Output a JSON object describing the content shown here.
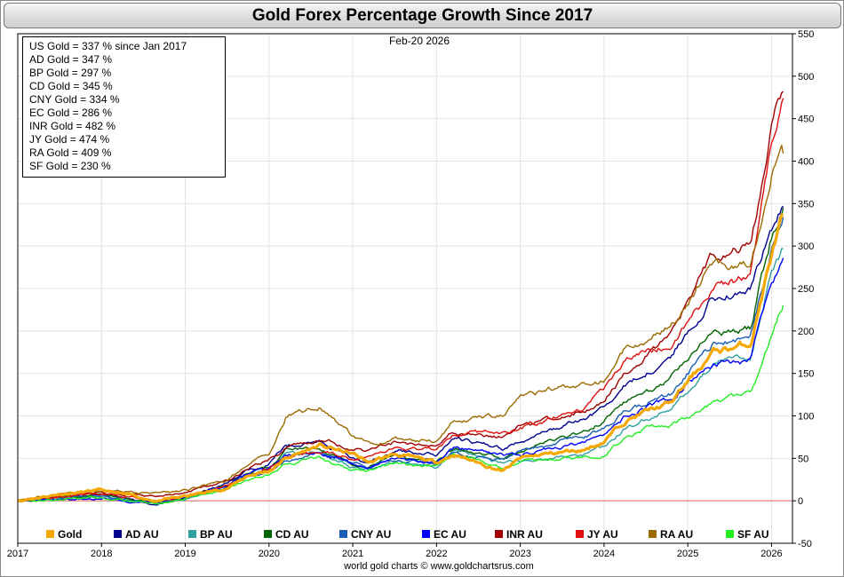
{
  "title": "Gold Forex Percentage Growth Since 2017",
  "date_label": "Feb-20  2026",
  "footer": "world gold charts © www.goldchartsrus.com",
  "summary": [
    "US Gold = 337 % since Jan 2017",
    "AD Gold = 347 %",
    "BP Gold = 297 %",
    "CD Gold = 345 %",
    "CNY Gold = 334 %",
    "EC Gold = 286 %",
    "INR Gold = 482 %",
    "JY Gold = 474 %",
    "RA Gold = 409 %",
    "SF Gold = 230 %"
  ],
  "chart_data": {
    "type": "line",
    "title": "Gold Forex Percentage Growth Since 2017",
    "xlabel": "",
    "ylabel": "",
    "xlim": [
      2017,
      2026.25
    ],
    "ylim": [
      -50,
      550
    ],
    "y_ticks": [
      550,
      500,
      450,
      400,
      350,
      300,
      250,
      200,
      150,
      100,
      50,
      0,
      -50
    ],
    "x_tick_labels": [
      "2017",
      "2018",
      "2019",
      "2020",
      "2021",
      "2022",
      "2023",
      "2024",
      "2025",
      "2026"
    ],
    "x_ticks": [
      2017,
      2018,
      2019,
      2020,
      2021,
      2022,
      2023,
      2024,
      2025,
      2026
    ],
    "zero_line": 0,
    "grid": true,
    "legend_position": "bottom",
    "colors": {
      "zero_line": "#e06060",
      "grid": "#e4e4e4"
    },
    "series": [
      {
        "name": "Gold",
        "color": "#f5a800",
        "width": 3.2,
        "x": [
          2017,
          2017.5,
          2018,
          2018.67,
          2019,
          2019.5,
          2019.75,
          2020,
          2020.2,
          2020.6,
          2021,
          2021.2,
          2021.5,
          2022,
          2022.2,
          2022.8,
          2023,
          2023.3,
          2023.75,
          2024,
          2024.25,
          2024.5,
          2024.8,
          2025,
          2025.3,
          2025.75,
          2026,
          2026.14
        ],
        "y": [
          0,
          8,
          12,
          0,
          5,
          15,
          30,
          35,
          50,
          65,
          55,
          45,
          55,
          45,
          55,
          35,
          50,
          55,
          60,
          70,
          95,
          105,
          115,
          140,
          175,
          185,
          290,
          337
        ]
      },
      {
        "name": "AD AU",
        "color": "#000090",
        "width": 1.4,
        "x": [
          2017,
          2017.5,
          2018,
          2018.67,
          2019,
          2019.5,
          2019.75,
          2020,
          2020.2,
          2020.6,
          2021,
          2021.2,
          2021.5,
          2022,
          2022.2,
          2022.8,
          2023,
          2023.3,
          2023.75,
          2024,
          2024.25,
          2024.5,
          2024.8,
          2025,
          2025.3,
          2025.75,
          2026,
          2026.14
        ],
        "y": [
          0,
          5,
          8,
          -5,
          3,
          20,
          35,
          45,
          65,
          70,
          50,
          45,
          60,
          55,
          75,
          60,
          70,
          80,
          95,
          110,
          135,
          150,
          170,
          200,
          240,
          250,
          320,
          347
        ]
      },
      {
        "name": "BP AU",
        "color": "#30a0a0",
        "width": 1.4,
        "x": [
          2017,
          2017.5,
          2018,
          2018.67,
          2019,
          2019.5,
          2019.75,
          2020,
          2020.2,
          2020.6,
          2021,
          2021.2,
          2021.5,
          2022,
          2022.2,
          2022.8,
          2023,
          2023.3,
          2023.75,
          2024,
          2024.25,
          2024.5,
          2024.8,
          2025,
          2025.3,
          2025.75,
          2026,
          2026.14
        ],
        "y": [
          0,
          3,
          5,
          -3,
          2,
          18,
          30,
          38,
          55,
          55,
          40,
          38,
          45,
          40,
          60,
          45,
          45,
          50,
          55,
          65,
          85,
          95,
          110,
          130,
          160,
          170,
          270,
          297
        ]
      },
      {
        "name": "CD AU",
        "color": "#006400",
        "width": 1.4,
        "x": [
          2017,
          2017.5,
          2018,
          2018.67,
          2019,
          2019.5,
          2019.75,
          2020,
          2020.2,
          2020.6,
          2021,
          2021.2,
          2021.5,
          2022,
          2022.2,
          2022.8,
          2023,
          2023.3,
          2023.75,
          2024,
          2024.25,
          2024.5,
          2024.8,
          2025,
          2025.3,
          2025.75,
          2026,
          2026.14
        ],
        "y": [
          0,
          4,
          8,
          -3,
          4,
          18,
          32,
          40,
          60,
          60,
          45,
          42,
          52,
          48,
          62,
          50,
          60,
          70,
          80,
          95,
          115,
          125,
          145,
          170,
          200,
          205,
          310,
          345
        ]
      },
      {
        "name": "CNY AU",
        "color": "#1a5fb4",
        "width": 1.4,
        "x": [
          2017,
          2017.5,
          2018,
          2018.67,
          2019,
          2019.5,
          2019.75,
          2020,
          2020.2,
          2020.6,
          2021,
          2021.2,
          2021.5,
          2022,
          2022.2,
          2022.8,
          2023,
          2023.3,
          2023.75,
          2024,
          2024.25,
          2024.5,
          2024.8,
          2025,
          2025.3,
          2025.75,
          2026,
          2026.14
        ],
        "y": [
          0,
          3,
          5,
          -2,
          4,
          16,
          28,
          35,
          48,
          55,
          45,
          40,
          48,
          42,
          55,
          48,
          60,
          65,
          75,
          85,
          105,
          115,
          125,
          150,
          185,
          190,
          300,
          334
        ]
      },
      {
        "name": "EC AU",
        "color": "#0000ff",
        "width": 1.4,
        "x": [
          2017,
          2017.5,
          2018,
          2018.67,
          2019,
          2019.5,
          2019.75,
          2020,
          2020.2,
          2020.6,
          2021,
          2021.2,
          2021.5,
          2022,
          2022.2,
          2022.8,
          2023,
          2023.3,
          2023.75,
          2024,
          2024.25,
          2024.5,
          2024.8,
          2025,
          2025.3,
          2025.75,
          2026,
          2026.14
        ],
        "y": [
          0,
          2,
          3,
          -2,
          5,
          18,
          32,
          40,
          55,
          58,
          42,
          40,
          50,
          45,
          62,
          55,
          55,
          60,
          68,
          80,
          100,
          110,
          120,
          140,
          160,
          165,
          260,
          286
        ]
      },
      {
        "name": "INR AU",
        "color": "#a00000",
        "width": 1.4,
        "x": [
          2017,
          2017.5,
          2018,
          2018.67,
          2019,
          2019.5,
          2019.75,
          2020,
          2020.2,
          2020.6,
          2021,
          2021.2,
          2021.5,
          2022,
          2022.2,
          2022.8,
          2023,
          2023.3,
          2023.75,
          2024,
          2024.25,
          2024.5,
          2024.8,
          2025,
          2025.3,
          2025.75,
          2026,
          2026.14
        ],
        "y": [
          0,
          5,
          10,
          5,
          10,
          22,
          38,
          48,
          62,
          72,
          62,
          58,
          68,
          65,
          80,
          75,
          90,
          95,
          105,
          120,
          150,
          170,
          195,
          230,
          290,
          300,
          440,
          482
        ]
      },
      {
        "name": "JY AU",
        "color": "#e01010",
        "width": 1.4,
        "x": [
          2017,
          2017.5,
          2018,
          2018.67,
          2019,
          2019.5,
          2019.75,
          2020,
          2020.2,
          2020.6,
          2021,
          2021.2,
          2021.5,
          2022,
          2022.2,
          2022.8,
          2023,
          2023.3,
          2023.75,
          2024,
          2024.25,
          2024.5,
          2024.8,
          2025,
          2025.3,
          2025.75,
          2026,
          2026.14
        ],
        "y": [
          0,
          5,
          8,
          0,
          4,
          18,
          30,
          38,
          52,
          60,
          50,
          50,
          62,
          60,
          78,
          80,
          85,
          95,
          110,
          130,
          165,
          175,
          185,
          210,
          250,
          265,
          420,
          474
        ]
      },
      {
        "name": "RA AU",
        "color": "#9a6b00",
        "width": 1.4,
        "x": [
          2017,
          2017.5,
          2018,
          2018.67,
          2019,
          2019.5,
          2019.75,
          2020,
          2020.2,
          2020.6,
          2021,
          2021.2,
          2021.5,
          2022,
          2022.2,
          2022.8,
          2023,
          2023.3,
          2023.75,
          2024,
          2024.25,
          2024.5,
          2024.8,
          2025,
          2025.3,
          2025.75,
          2026,
          2026.14
        ],
        "y": [
          0,
          8,
          12,
          10,
          12,
          25,
          45,
          55,
          100,
          110,
          75,
          65,
          75,
          70,
          95,
          100,
          120,
          130,
          135,
          140,
          180,
          190,
          205,
          230,
          280,
          280,
          390,
          409
        ]
      },
      {
        "name": "SF AU",
        "color": "#22ee22",
        "width": 1.4,
        "x": [
          2017,
          2017.5,
          2018,
          2018.67,
          2019,
          2019.5,
          2019.75,
          2020,
          2020.2,
          2020.6,
          2021,
          2021.2,
          2021.5,
          2022,
          2022.2,
          2022.8,
          2023,
          2023.3,
          2023.75,
          2024,
          2024.25,
          2024.5,
          2024.8,
          2025,
          2025.3,
          2025.75,
          2026,
          2026.14
        ],
        "y": [
          0,
          2,
          4,
          -4,
          2,
          15,
          25,
          30,
          45,
          50,
          38,
          35,
          45,
          40,
          55,
          38,
          45,
          48,
          50,
          55,
          75,
          85,
          90,
          100,
          115,
          125,
          195,
          230
        ]
      }
    ]
  }
}
